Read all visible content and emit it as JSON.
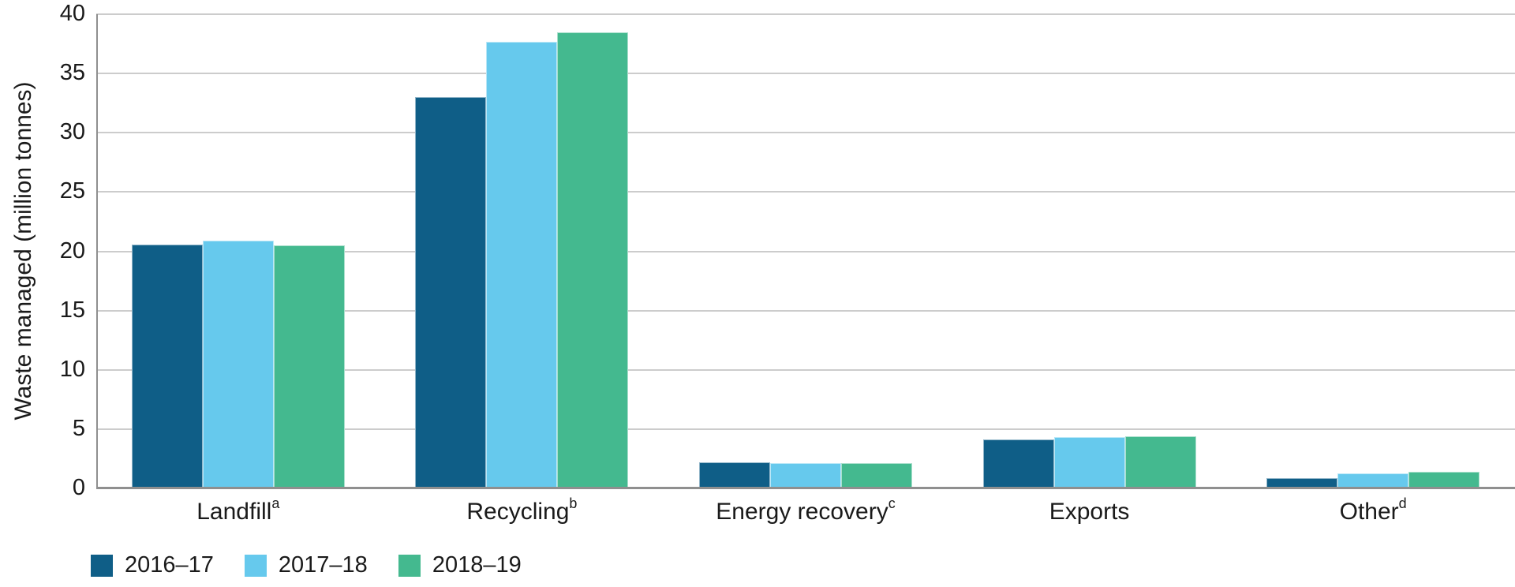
{
  "chart_data": {
    "type": "bar",
    "title": "",
    "xlabel": "",
    "ylabel": "Waste managed (million tonnes)",
    "ylim": [
      0,
      40
    ],
    "yticks": [
      0,
      5,
      10,
      15,
      20,
      25,
      30,
      35,
      40
    ],
    "grid": true,
    "legend_position": "bottom-left",
    "categories": [
      {
        "label": "Landfill",
        "sup": "a"
      },
      {
        "label": "Recycling",
        "sup": "b"
      },
      {
        "label": "Energy recovery",
        "sup": "c"
      },
      {
        "label": "Exports",
        "sup": ""
      },
      {
        "label": "Other",
        "sup": "d"
      }
    ],
    "series": [
      {
        "name": "2016–17",
        "color": "#0f5e87",
        "values": [
          20.6,
          33.0,
          2.2,
          4.1,
          0.9
        ]
      },
      {
        "name": "2017–18",
        "color": "#66c9ed",
        "values": [
          20.9,
          37.7,
          2.1,
          4.3,
          1.3
        ]
      },
      {
        "name": "2018–19",
        "color": "#44b98f",
        "values": [
          20.5,
          38.5,
          2.1,
          4.4,
          1.4
        ]
      }
    ],
    "colors": {
      "gridline": "#cccccc",
      "axis": "#8f8f8f",
      "text": "#1a1a1a"
    }
  }
}
